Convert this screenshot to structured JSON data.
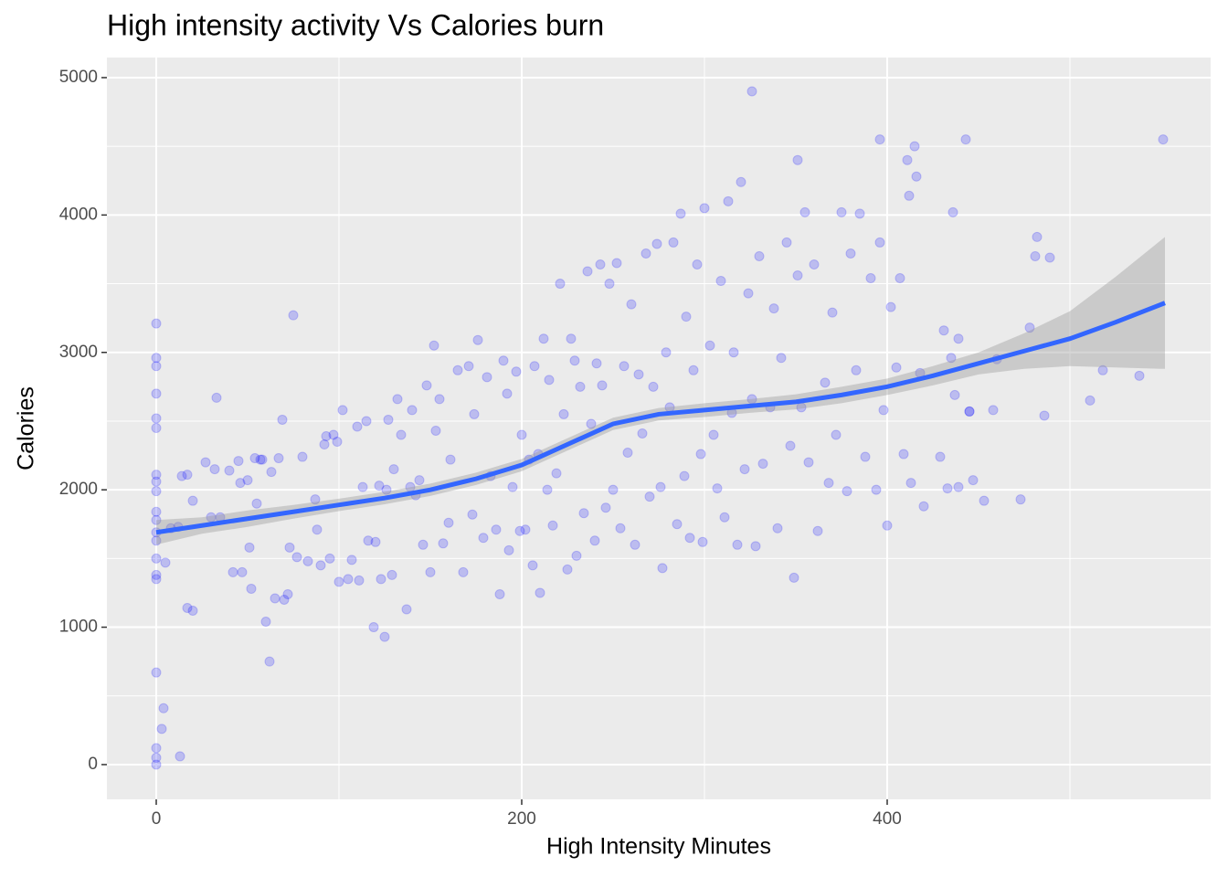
{
  "chart_data": {
    "type": "scatter",
    "title": "High intensity activity Vs Calories burn",
    "x_label": "High Intensity Minutes",
    "y_label": "Calories",
    "xlim": [
      -27,
      577
    ],
    "ylim": [
      -253,
      5146
    ],
    "xticks": [
      0,
      200,
      400
    ],
    "yticks": [
      0,
      1000,
      2000,
      3000,
      4000,
      5000
    ],
    "x_minor_ticks": [
      100,
      300,
      500
    ],
    "y_minor_ticks": [
      500,
      1500,
      2500,
      3500,
      4500
    ],
    "grid": true,
    "color": "#0000ff",
    "opacity": 0.2,
    "x": [
      0,
      0,
      0,
      0,
      0,
      0,
      0,
      0,
      0,
      0,
      0,
      0,
      0,
      0,
      0,
      0,
      0,
      0,
      0,
      0,
      3,
      4,
      13,
      5,
      8,
      12,
      14,
      17,
      17,
      20,
      20,
      27,
      30,
      32,
      33,
      35,
      40,
      42,
      45,
      46,
      47,
      50,
      51,
      52,
      54,
      55,
      57,
      58,
      60,
      63,
      65,
      67,
      62,
      69,
      70,
      72,
      73,
      75,
      77,
      80,
      83,
      87,
      88,
      90,
      92,
      93,
      95,
      97,
      99,
      100,
      102,
      105,
      107,
      110,
      111,
      113,
      115,
      116,
      119,
      120,
      122,
      123,
      125,
      126,
      127,
      129,
      130,
      132,
      134,
      137,
      139,
      140,
      142,
      144,
      146,
      148,
      150,
      152,
      153,
      155,
      157,
      160,
      161,
      165,
      168,
      171,
      174,
      173,
      176,
      179,
      181,
      183,
      186,
      188,
      190,
      192,
      193,
      195,
      197,
      199,
      200,
      202,
      204,
      206,
      207,
      209,
      210,
      212,
      214,
      215,
      217,
      219,
      221,
      223,
      225,
      227,
      229,
      230,
      232,
      234,
      236,
      238,
      240,
      241,
      243,
      244,
      246,
      248,
      250,
      252,
      254,
      256,
      258,
      260,
      262,
      264,
      266,
      268,
      270,
      272,
      274,
      276,
      277,
      279,
      281,
      283,
      285,
      287,
      289,
      290,
      292,
      294,
      296,
      298,
      299,
      300,
      303,
      305,
      307,
      309,
      311,
      313,
      315,
      316,
      318,
      320,
      322,
      324,
      326,
      328,
      330,
      332,
      326,
      336,
      338,
      340,
      342,
      345,
      347,
      349,
      351,
      353,
      355,
      357,
      360,
      362,
      351,
      366,
      368,
      370,
      372,
      375,
      378,
      380,
      383,
      385,
      388,
      391,
      394,
      396,
      398,
      400,
      402,
      405,
      407,
      409,
      396,
      413,
      416,
      418,
      420,
      412,
      415,
      411,
      429,
      431,
      433,
      435,
      437,
      439,
      443,
      436,
      439,
      445,
      447,
      453,
      445,
      458,
      460,
      473,
      478,
      481,
      482,
      486,
      489,
      511,
      518,
      538,
      551
    ],
    "y": [
      0,
      50,
      120,
      670,
      1350,
      1500,
      1690,
      1840,
      1990,
      2060,
      2110,
      2450,
      2520,
      2700,
      2900,
      2960,
      3210,
      1380,
      1630,
      1780,
      260,
      410,
      60,
      1470,
      1720,
      1730,
      2100,
      2110,
      1140,
      1920,
      1120,
      2200,
      1800,
      2150,
      2670,
      1800,
      2140,
      1400,
      2210,
      2050,
      1400,
      2070,
      1580,
      1280,
      2230,
      1900,
      2220,
      2220,
      1040,
      2130,
      1210,
      2230,
      750,
      2510,
      1200,
      1240,
      1580,
      3270,
      1510,
      2240,
      1480,
      1930,
      1710,
      1450,
      2330,
      2390,
      1500,
      2400,
      2350,
      1330,
      2580,
      1350,
      1490,
      2460,
      1340,
      2020,
      2500,
      1630,
      1000,
      1620,
      2030,
      1350,
      930,
      2000,
      2510,
      1380,
      2150,
      2660,
      2400,
      1130,
      2020,
      2580,
      1960,
      2070,
      1600,
      2760,
      1400,
      3050,
      2430,
      2660,
      1610,
      1760,
      2220,
      2870,
      1400,
      2900,
      2550,
      1820,
      3090,
      1650,
      2820,
      2100,
      1710,
      1240,
      2940,
      2700,
      1560,
      2020,
      2860,
      1700,
      2400,
      1710,
      2220,
      1450,
      2900,
      2260,
      1250,
      3100,
      2000,
      2800,
      1740,
      2120,
      3500,
      2550,
      1420,
      3100,
      2940,
      1520,
      2750,
      1830,
      3590,
      2480,
      1630,
      2920,
      3640,
      2760,
      1870,
      3500,
      2000,
      3650,
      1720,
      2900,
      2270,
      3350,
      1600,
      2840,
      2410,
      3720,
      1950,
      2750,
      3790,
      2020,
      1430,
      3000,
      2600,
      3800,
      1750,
      4010,
      2100,
      3260,
      1650,
      2870,
      3640,
      2260,
      1620,
      4050,
      3050,
      2400,
      2010,
      3520,
      1800,
      4100,
      2560,
      3000,
      1600,
      4240,
      2150,
      3430,
      2660,
      1590,
      3700,
      2190,
      4900,
      2600,
      3320,
      1720,
      2960,
      3800,
      2320,
      1360,
      3560,
      2600,
      4020,
      2200,
      3640,
      1700,
      4400,
      2780,
      2050,
      3290,
      2400,
      4020,
      1990,
      3720,
      2870,
      4010,
      2240,
      3540,
      2000,
      3800,
      2580,
      1740,
      3330,
      2890,
      3540,
      2260,
      4550,
      2050,
      4280,
      2850,
      1880,
      4140,
      4500,
      4400,
      2240,
      3160,
      2010,
      2960,
      2690,
      2020,
      4550,
      4020,
      3100,
      2570,
      2070,
      1920,
      2570,
      2580,
      2950,
      1930,
      3180,
      3700,
      3840,
      2540,
      3690,
      2650,
      2870,
      2830,
      4550
    ],
    "smooth": {
      "color": "#3366ff",
      "band_color": "#999999",
      "x": [
        0,
        25,
        50,
        75,
        100,
        125,
        150,
        175,
        200,
        225,
        250,
        275,
        300,
        325,
        350,
        375,
        400,
        425,
        450,
        475,
        500,
        525,
        552
      ],
      "y": [
        1690,
        1740,
        1790,
        1840,
        1890,
        1940,
        2000,
        2080,
        2180,
        2330,
        2480,
        2550,
        2580,
        2610,
        2640,
        2690,
        2750,
        2830,
        2920,
        3010,
        3100,
        3220,
        3360
      ],
      "lower": [
        1600,
        1680,
        1730,
        1790,
        1845,
        1895,
        1955,
        2035,
        2135,
        2285,
        2435,
        2505,
        2530,
        2560,
        2585,
        2630,
        2690,
        2760,
        2840,
        2880,
        2900,
        2890,
        2880
      ],
      "upper": [
        1780,
        1800,
        1850,
        1890,
        1935,
        1985,
        2045,
        2125,
        2225,
        2375,
        2525,
        2595,
        2630,
        2660,
        2695,
        2750,
        2810,
        2900,
        3000,
        3140,
        3300,
        3550,
        3840
      ]
    }
  }
}
